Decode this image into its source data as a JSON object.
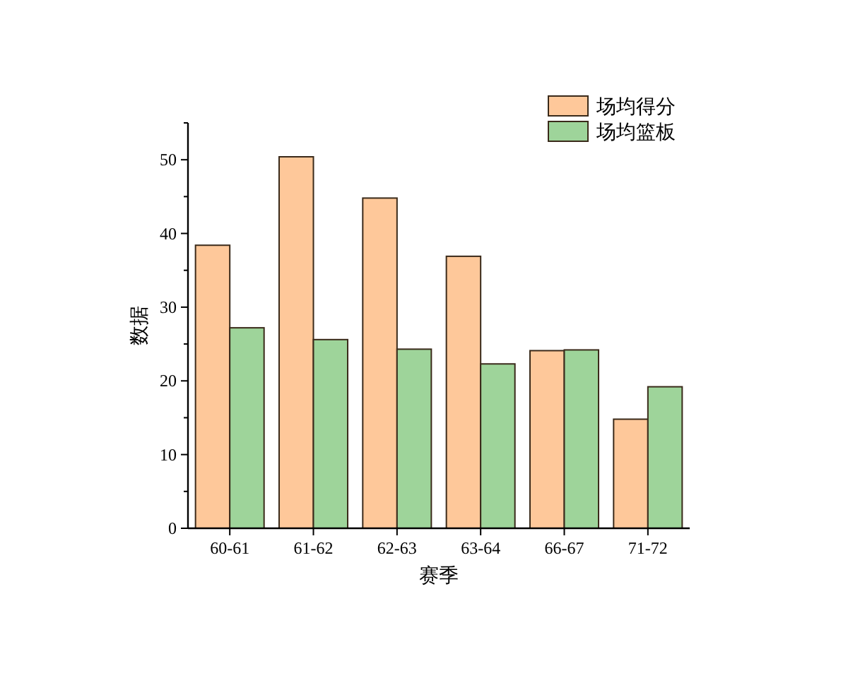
{
  "chart_data": {
    "type": "bar",
    "xlabel": "赛季",
    "ylabel": "数据",
    "categories": [
      "60-61",
      "61-62",
      "62-63",
      "63-64",
      "66-67",
      "71-72"
    ],
    "series": [
      {
        "name": "场均得分",
        "color": "#fec89a",
        "values": [
          38.4,
          50.4,
          44.8,
          36.9,
          24.1,
          14.8
        ]
      },
      {
        "name": "场均篮板",
        "color": "#9ed49a",
        "values": [
          27.2,
          25.6,
          24.3,
          22.3,
          24.2,
          19.2
        ]
      }
    ],
    "ylim": [
      0,
      55
    ],
    "yticks": [
      0,
      {
        "value": 5,
        "label": null
      },
      10,
      {
        "value": 15,
        "label": null
      },
      20,
      {
        "value": 25,
        "label": null
      },
      30,
      {
        "value": 35,
        "label": null
      },
      40,
      {
        "value": 45,
        "label": null
      },
      50,
      {
        "value": 55,
        "label": null
      }
    ],
    "legend": "top right"
  }
}
